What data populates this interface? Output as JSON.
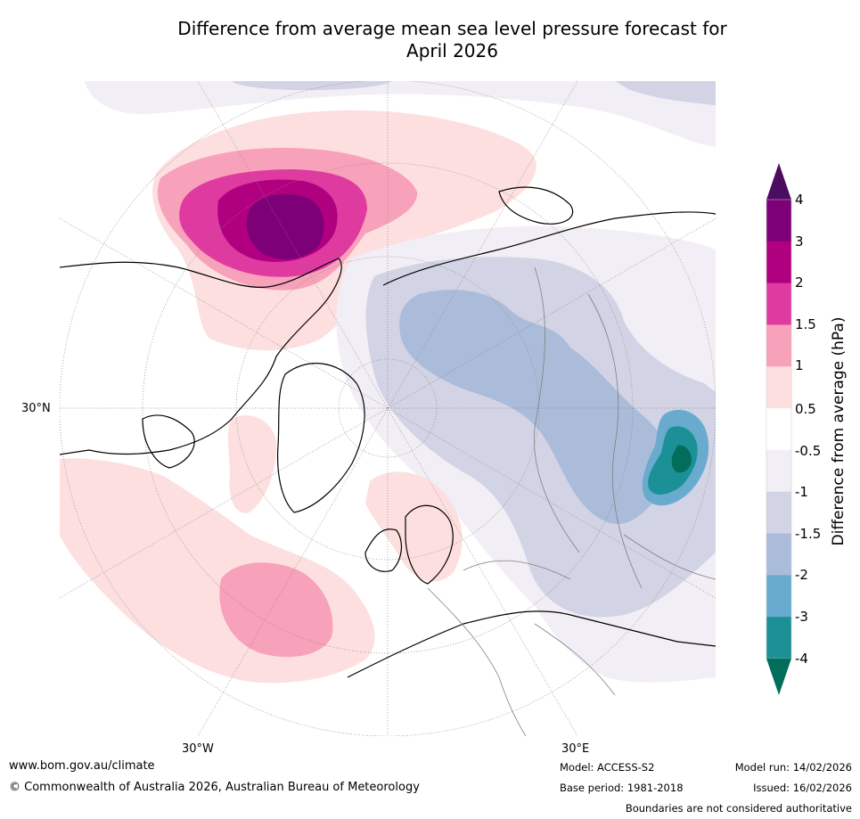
{
  "title_line1": "Difference from average mean sea level pressure forecast for",
  "title_line2": "April 2026",
  "map": {
    "type": "polar stereographic map, Northern Hemisphere",
    "parallel_labels": [
      "30°N"
    ],
    "meridian_labels": [
      "30°W",
      "30°E"
    ],
    "region_labels": [],
    "colors": {
      "land_outline": "#000000",
      "borders": "#808080",
      "grid": "#888888"
    }
  },
  "colorbar": {
    "label": "Difference from average (hPa)",
    "ticks": [
      "4",
      "3",
      "2",
      "1.5",
      "1",
      "0.5",
      "-0.5",
      "-1",
      "-1.5",
      "-2",
      "-3",
      "-4"
    ],
    "bins_top_to_bottom": [
      {
        "range": "> 4",
        "color": "#4b0d62"
      },
      {
        "range": "3 to 4",
        "color": "#7d0079"
      },
      {
        "range": "2 to 3",
        "color": "#b00080"
      },
      {
        "range": "1.5 to 2",
        "color": "#df3aa0"
      },
      {
        "range": "1 to 1.5",
        "color": "#f7a1ba"
      },
      {
        "range": "0.5 to 1",
        "color": "#fddfdf"
      },
      {
        "range": "-0.5 to 0.5",
        "color": "#ffffff"
      },
      {
        "range": "-1 to -0.5",
        "color": "#f2eef5"
      },
      {
        "range": "-1.5 to -1",
        "color": "#d3d3e6"
      },
      {
        "range": "-2 to -1.5",
        "color": "#aabcd9"
      },
      {
        "range": "-3 to -2",
        "color": "#68abcf"
      },
      {
        "range": "-4 to -3",
        "color": "#1b9096"
      },
      {
        "range": "< -4",
        "color": "#036d5c"
      }
    ]
  },
  "footer": {
    "website": "www.bom.gov.au/climate",
    "copyright": "© Commonwealth of Australia 2026, Australian Bureau of Meteorology",
    "model": "Model: ACCESS-S2",
    "base_period": "Base period: 1981-2018",
    "model_run": "Model run: 14/02/2026",
    "issued": "Issued: 16/02/2026",
    "disclaimer": "Boundaries are not considered authoritative"
  }
}
